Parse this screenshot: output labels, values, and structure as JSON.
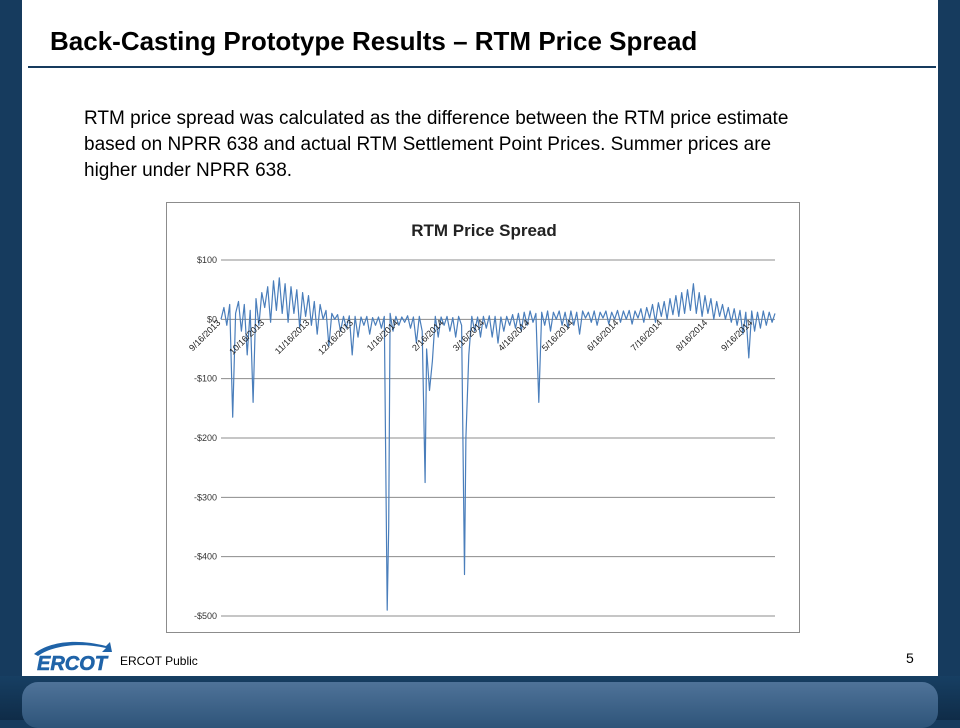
{
  "slide": {
    "title": "Back-Casting Prototype Results – RTM Price Spread",
    "body": "RTM price spread was calculated as the difference between the RTM price estimate based on NPRR 638 and actual RTM Settlement Point Prices.   Summer prices are higher under NPRR 638.",
    "footer_label": "ERCOT Public",
    "page_number": "5",
    "logo_text": "ERCOT"
  },
  "colors": {
    "navy": "#163b5e",
    "series": "#4a7ebb",
    "grid": "#8c8c8c",
    "logo_blue": "#1f63a8"
  },
  "chart_data": {
    "type": "line",
    "title": "RTM Price Spread",
    "xlabel": "",
    "ylabel": "",
    "ylim": [
      -500,
      100
    ],
    "yticks": [
      100,
      0,
      -100,
      -200,
      -300,
      -400,
      -500
    ],
    "ytick_labels": [
      "$100",
      "$0",
      "-$100",
      "-$200",
      "-$300",
      "-$400",
      "-$500"
    ],
    "xlim": [
      "2013-09-16",
      "2014-10-01"
    ],
    "x_tick_labels": [
      "9/16/2013",
      "10/16/2013",
      "11/16/2013",
      "12/16/2013",
      "1/16/2014",
      "2/16/2014",
      "3/16/2014",
      "4/16/2014",
      "5/16/2014",
      "6/16/2014",
      "7/16/2014",
      "8/16/2014",
      "9/16/2014"
    ],
    "grid": "horizontal",
    "series": [
      {
        "points": [
          [
            "2013-09-16",
            0
          ],
          [
            "2013-09-18",
            20
          ],
          [
            "2013-09-20",
            -10
          ],
          [
            "2013-09-22",
            25
          ],
          [
            "2013-09-24",
            -165
          ],
          [
            "2013-09-26",
            10
          ],
          [
            "2013-09-28",
            30
          ],
          [
            "2013-09-30",
            -20
          ],
          [
            "2013-10-02",
            25
          ],
          [
            "2013-10-04",
            -60
          ],
          [
            "2013-10-06",
            15
          ],
          [
            "2013-10-08",
            -140
          ],
          [
            "2013-10-10",
            35
          ],
          [
            "2013-10-12",
            -10
          ],
          [
            "2013-10-14",
            45
          ],
          [
            "2013-10-16",
            20
          ],
          [
            "2013-10-18",
            55
          ],
          [
            "2013-10-20",
            -5
          ],
          [
            "2013-10-22",
            65
          ],
          [
            "2013-10-24",
            15
          ],
          [
            "2013-10-26",
            70
          ],
          [
            "2013-10-28",
            10
          ],
          [
            "2013-10-30",
            60
          ],
          [
            "2013-11-01",
            -5
          ],
          [
            "2013-11-03",
            55
          ],
          [
            "2013-11-05",
            10
          ],
          [
            "2013-11-07",
            50
          ],
          [
            "2013-11-09",
            -15
          ],
          [
            "2013-11-11",
            45
          ],
          [
            "2013-11-13",
            5
          ],
          [
            "2013-11-15",
            40
          ],
          [
            "2013-11-17",
            -10
          ],
          [
            "2013-11-19",
            30
          ],
          [
            "2013-11-21",
            -25
          ],
          [
            "2013-11-23",
            25
          ],
          [
            "2013-11-25",
            0
          ],
          [
            "2013-11-27",
            15
          ],
          [
            "2013-11-29",
            -45
          ],
          [
            "2013-12-01",
            10
          ],
          [
            "2013-12-03",
            0
          ],
          [
            "2013-12-05",
            8
          ],
          [
            "2013-12-07",
            -20
          ],
          [
            "2013-12-09",
            5
          ],
          [
            "2013-12-11",
            -15
          ],
          [
            "2013-12-13",
            6
          ],
          [
            "2013-12-15",
            -60
          ],
          [
            "2013-12-17",
            5
          ],
          [
            "2013-12-19",
            -30
          ],
          [
            "2013-12-21",
            4
          ],
          [
            "2013-12-23",
            -10
          ],
          [
            "2013-12-25",
            5
          ],
          [
            "2013-12-27",
            -25
          ],
          [
            "2013-12-29",
            3
          ],
          [
            "2013-12-31",
            -10
          ],
          [
            "2014-01-02",
            4
          ],
          [
            "2014-01-04",
            -15
          ],
          [
            "2014-01-06",
            5
          ],
          [
            "2014-01-08",
            -490
          ],
          [
            "2014-01-09",
            -350
          ],
          [
            "2014-01-10",
            10
          ],
          [
            "2014-01-12",
            -20
          ],
          [
            "2014-01-14",
            5
          ],
          [
            "2014-01-16",
            -10
          ],
          [
            "2014-01-18",
            4
          ],
          [
            "2014-01-20",
            -5
          ],
          [
            "2014-01-22",
            6
          ],
          [
            "2014-01-24",
            -15
          ],
          [
            "2014-01-26",
            4
          ],
          [
            "2014-01-28",
            -40
          ],
          [
            "2014-01-30",
            5
          ],
          [
            "2014-02-01",
            -20
          ],
          [
            "2014-02-03",
            -275
          ],
          [
            "2014-02-04",
            -50
          ],
          [
            "2014-02-06",
            -120
          ],
          [
            "2014-02-08",
            -70
          ],
          [
            "2014-02-10",
            5
          ],
          [
            "2014-02-12",
            -30
          ],
          [
            "2014-02-14",
            4
          ],
          [
            "2014-02-16",
            -10
          ],
          [
            "2014-02-18",
            5
          ],
          [
            "2014-02-20",
            -20
          ],
          [
            "2014-02-22",
            3
          ],
          [
            "2014-02-24",
            -30
          ],
          [
            "2014-02-26",
            5
          ],
          [
            "2014-02-28",
            -10
          ],
          [
            "2014-03-02",
            -430
          ],
          [
            "2014-03-03",
            -200
          ],
          [
            "2014-03-05",
            -60
          ],
          [
            "2014-03-07",
            5
          ],
          [
            "2014-03-09",
            -20
          ],
          [
            "2014-03-11",
            4
          ],
          [
            "2014-03-13",
            -30
          ],
          [
            "2014-03-15",
            5
          ],
          [
            "2014-03-17",
            -15
          ],
          [
            "2014-03-19",
            6
          ],
          [
            "2014-03-21",
            -30
          ],
          [
            "2014-03-23",
            5
          ],
          [
            "2014-03-25",
            -40
          ],
          [
            "2014-03-27",
            4
          ],
          [
            "2014-03-29",
            -20
          ],
          [
            "2014-03-31",
            5
          ],
          [
            "2014-04-02",
            -10
          ],
          [
            "2014-04-04",
            8
          ],
          [
            "2014-04-06",
            -15
          ],
          [
            "2014-04-08",
            10
          ],
          [
            "2014-04-10",
            -20
          ],
          [
            "2014-04-12",
            12
          ],
          [
            "2014-04-14",
            -10
          ],
          [
            "2014-04-16",
            14
          ],
          [
            "2014-04-18",
            -5
          ],
          [
            "2014-04-20",
            10
          ],
          [
            "2014-04-22",
            -140
          ],
          [
            "2014-04-24",
            12
          ],
          [
            "2014-04-26",
            -10
          ],
          [
            "2014-04-28",
            14
          ],
          [
            "2014-04-30",
            -20
          ],
          [
            "2014-05-02",
            12
          ],
          [
            "2014-05-04",
            0
          ],
          [
            "2014-05-06",
            14
          ],
          [
            "2014-05-08",
            -10
          ],
          [
            "2014-05-10",
            12
          ],
          [
            "2014-05-12",
            -15
          ],
          [
            "2014-05-14",
            14
          ],
          [
            "2014-05-16",
            -10
          ],
          [
            "2014-05-18",
            12
          ],
          [
            "2014-05-20",
            -25
          ],
          [
            "2014-05-22",
            14
          ],
          [
            "2014-05-24",
            2
          ],
          [
            "2014-05-26",
            12
          ],
          [
            "2014-05-28",
            -5
          ],
          [
            "2014-05-30",
            14
          ],
          [
            "2014-06-01",
            -10
          ],
          [
            "2014-06-03",
            12
          ],
          [
            "2014-06-05",
            2
          ],
          [
            "2014-06-07",
            14
          ],
          [
            "2014-06-09",
            -8
          ],
          [
            "2014-06-11",
            12
          ],
          [
            "2014-06-13",
            0
          ],
          [
            "2014-06-15",
            15
          ],
          [
            "2014-06-17",
            -5
          ],
          [
            "2014-06-19",
            14
          ],
          [
            "2014-06-21",
            0
          ],
          [
            "2014-06-23",
            15
          ],
          [
            "2014-06-25",
            -8
          ],
          [
            "2014-06-27",
            14
          ],
          [
            "2014-06-29",
            2
          ],
          [
            "2014-07-01",
            18
          ],
          [
            "2014-07-03",
            -5
          ],
          [
            "2014-07-05",
            20
          ],
          [
            "2014-07-07",
            2
          ],
          [
            "2014-07-09",
            25
          ],
          [
            "2014-07-11",
            -5
          ],
          [
            "2014-07-13",
            28
          ],
          [
            "2014-07-15",
            5
          ],
          [
            "2014-07-17",
            30
          ],
          [
            "2014-07-19",
            0
          ],
          [
            "2014-07-21",
            35
          ],
          [
            "2014-07-23",
            8
          ],
          [
            "2014-07-25",
            40
          ],
          [
            "2014-07-27",
            5
          ],
          [
            "2014-07-29",
            45
          ],
          [
            "2014-07-31",
            10
          ],
          [
            "2014-08-02",
            50
          ],
          [
            "2014-08-04",
            15
          ],
          [
            "2014-08-06",
            60
          ],
          [
            "2014-08-08",
            10
          ],
          [
            "2014-08-10",
            45
          ],
          [
            "2014-08-12",
            5
          ],
          [
            "2014-08-14",
            40
          ],
          [
            "2014-08-16",
            10
          ],
          [
            "2014-08-18",
            35
          ],
          [
            "2014-08-20",
            0
          ],
          [
            "2014-08-22",
            30
          ],
          [
            "2014-08-24",
            5
          ],
          [
            "2014-08-26",
            25
          ],
          [
            "2014-08-28",
            0
          ],
          [
            "2014-08-30",
            20
          ],
          [
            "2014-09-01",
            -5
          ],
          [
            "2014-09-03",
            18
          ],
          [
            "2014-09-05",
            -10
          ],
          [
            "2014-09-07",
            15
          ],
          [
            "2014-09-09",
            -25
          ],
          [
            "2014-09-11",
            12
          ],
          [
            "2014-09-13",
            -65
          ],
          [
            "2014-09-15",
            14
          ],
          [
            "2014-09-17",
            -20
          ],
          [
            "2014-09-19",
            12
          ],
          [
            "2014-09-21",
            -15
          ],
          [
            "2014-09-23",
            14
          ],
          [
            "2014-09-25",
            -10
          ],
          [
            "2014-09-27",
            12
          ],
          [
            "2014-09-29",
            -5
          ],
          [
            "2014-10-01",
            10
          ]
        ]
      }
    ]
  }
}
